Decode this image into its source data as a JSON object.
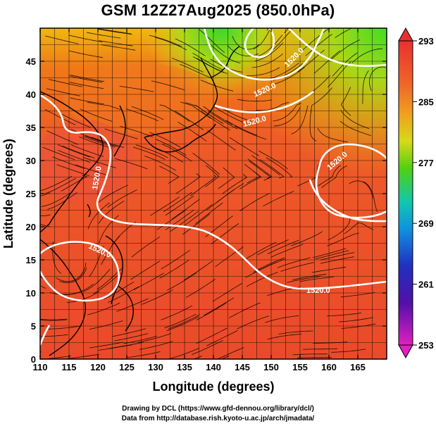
{
  "title": "GSM 12Z27Aug2025 (850.0hPa)",
  "x_axis": {
    "label": "Longitude (degrees)",
    "ticks": [
      "110",
      "115",
      "120",
      "125",
      "130",
      "135",
      "140",
      "145",
      "150",
      "155",
      "160",
      "165"
    ]
  },
  "y_axis": {
    "label": "Latitude  (degrees)",
    "ticks": [
      "0",
      "5",
      "10",
      "15",
      "20",
      "25",
      "30",
      "35",
      "40",
      "45"
    ]
  },
  "colorbar": {
    "labels": [
      "293",
      "285",
      "277",
      "269",
      "261",
      "253"
    ],
    "colors": [
      "#e83030",
      "#f07030",
      "#f0a020",
      "#c8d010",
      "#40d010",
      "#10c0c0",
      "#1060e0",
      "#2020a0",
      "#6010a0",
      "#e020c0"
    ]
  },
  "contour_labels": [
    "1520.0",
    "1520.0",
    "1520.0",
    "1520.0",
    "1520.0",
    "1520.0",
    "1520.0"
  ],
  "credits": {
    "line1": "Drawing by DCL (https://www.gfd-dennou.org/library/dcl/)",
    "line2": "Data from http://database.rish.kyoto-u.ac.jp/arch/jmadata/"
  },
  "chart_data": {
    "type": "heatmap",
    "title": "GSM 12Z27Aug2025 (850.0hPa)",
    "xlabel": "Longitude (degrees)",
    "ylabel": "Latitude  (degrees)",
    "xlim": [
      110,
      170
    ],
    "ylim": [
      0,
      50
    ],
    "color_range": [
      253,
      293
    ],
    "colorbar_ticks": [
      253,
      261,
      269,
      277,
      285,
      293
    ],
    "contour_level": 1520.0
  }
}
